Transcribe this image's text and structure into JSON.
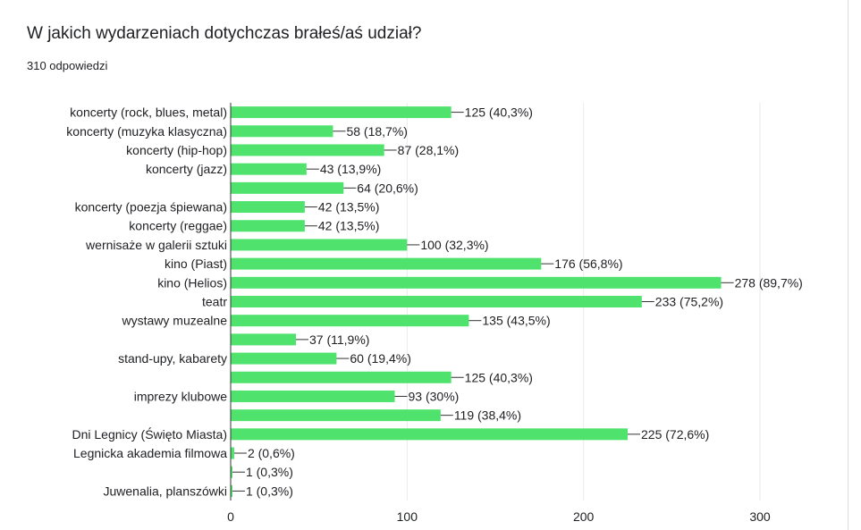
{
  "question": {
    "title": "W jakich wydarzeniach dotychczas brałeś/aś udział?",
    "responses": "310 odpowiedzi"
  },
  "colors": {
    "bar": "#4fe36e",
    "text": "#202124",
    "grid": "#e8eaed",
    "axis": "#333333"
  },
  "chart_data": {
    "type": "bar",
    "orientation": "horizontal",
    "total": 310,
    "xlim": [
      0,
      300
    ],
    "xticks": [
      0,
      100,
      200,
      300
    ],
    "grid": true,
    "categories": [
      "koncerty (rock, blues, metal)",
      "koncerty (muzyka klasyczna)",
      "koncerty (hip-hop)",
      "koncerty (jazz)",
      "",
      "koncerty (poezja śpiewana)",
      "koncerty (reggae)",
      "wernisaże w galerii sztuki",
      "kino (Piast)",
      "kino (Helios)",
      "teatr",
      "wystawy muzealne",
      "",
      "stand-upy, kabarety",
      "",
      "imprezy klubowe",
      "",
      "Dni Legnicy (Święto Miasta)",
      "Legnicka akademia filmowa",
      "",
      "Juwenalia, planszówki"
    ],
    "values": [
      125,
      58,
      87,
      43,
      64,
      42,
      42,
      100,
      176,
      278,
      233,
      135,
      37,
      60,
      125,
      93,
      119,
      225,
      2,
      1,
      1
    ],
    "data_labels": [
      "125 (40,3%)",
      "58 (18,7%)",
      "87 (28,1%)",
      "43 (13,9%)",
      "64 (20,6%)",
      "42 (13,5%)",
      "42 (13,5%)",
      "100 (32,3%)",
      "176 (56,8%)",
      "278 (89,7%)",
      "233 (75,2%)",
      "135 (43,5%)",
      "37 (11,9%)",
      "60 (19,4%)",
      "125 (40,3%)",
      "93 (30%)",
      "119 (38,4%)",
      "225 (72,6%)",
      "2 (0,6%)",
      "1 (0,3%)",
      "1 (0,3%)"
    ]
  }
}
